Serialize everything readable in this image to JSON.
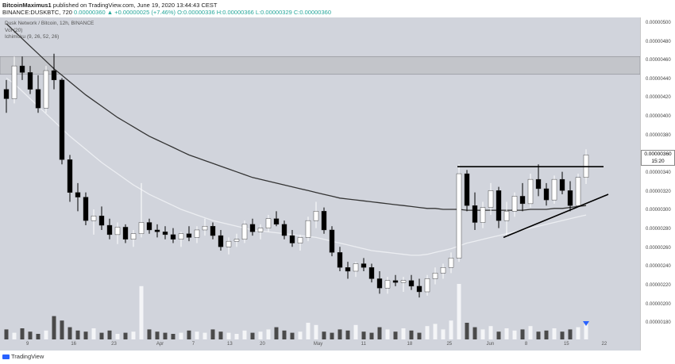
{
  "header": {
    "author": "BitcoinMaximus1",
    "published_text": "published on TradingView.com, June 19, 2020 13:44:43 CEST",
    "symbol": "BINANCE:DUSKBTC, 720",
    "ohlc": "0.00000360 ▲ +0.00000025 (+7.46%) O:0.00000336 H:0.00000366 L:0.00000329 C:0.00000360"
  },
  "legend": {
    "line1": "Dusk Network / Bitcoin, 12h, BINANCE",
    "line2": "Vol (20)",
    "line3": "Ichimoku (9, 26, 52, 26)"
  },
  "price_label": {
    "value": "0.00000360",
    "countdown": "15:20"
  },
  "footer": {
    "brand": "TradingView"
  },
  "colors": {
    "background": "#d1d4dc",
    "up_candle": "#ffffff",
    "down_candle": "#000000",
    "ma_dark": "#333333",
    "ma_light": "#eceef2",
    "resistance_zone": "#c3c5ca",
    "volume_marker": "#2962ff"
  },
  "chart_data": {
    "type": "candlestick",
    "title": "",
    "ylabel": "",
    "xlabel": "",
    "ylim": [
      1.7e-06,
      5.05e-06
    ],
    "y_ticks": [
      "0.00000500",
      "0.00000480",
      "0.00000460",
      "0.00000440",
      "0.00000420",
      "0.00000400",
      "0.00000380",
      "0.00000360",
      "0.00000340",
      "0.00000320",
      "0.00000300",
      "0.00000280",
      "0.00000260",
      "0.00000240",
      "0.00000220",
      "0.00000200",
      "0.00000180"
    ],
    "x_ticks": [
      "9",
      "16",
      "23",
      "Apr",
      "7",
      "13",
      "20",
      "May",
      "11",
      "18",
      "25",
      "Jun",
      "8",
      "15",
      "22"
    ],
    "resistance_zone": [
      4.46e-06,
      4.65e-06
    ],
    "horizontal_resistance": 3.475e-06,
    "ascending_trendline": [
      [
        2.72e-06,
        "Jun 1"
      ],
      [
        3.18e-06,
        "Jun 22"
      ]
    ],
    "candles": [
      {
        "x": 0,
        "o": 430,
        "h": 440,
        "l": 405,
        "c": 420
      },
      {
        "x": 1,
        "o": 420,
        "h": 465,
        "l": 415,
        "c": 455
      },
      {
        "x": 2,
        "o": 455,
        "h": 465,
        "l": 440,
        "c": 448
      },
      {
        "x": 3,
        "o": 448,
        "h": 455,
        "l": 425,
        "c": 430
      },
      {
        "x": 4,
        "o": 430,
        "h": 445,
        "l": 405,
        "c": 410
      },
      {
        "x": 5,
        "o": 410,
        "h": 455,
        "l": 405,
        "c": 450
      },
      {
        "x": 6,
        "o": 450,
        "h": 468,
        "l": 430,
        "c": 440
      },
      {
        "x": 7,
        "o": 440,
        "h": 442,
        "l": 350,
        "c": 355
      },
      {
        "x": 8,
        "o": 355,
        "h": 360,
        "l": 310,
        "c": 320
      },
      {
        "x": 9,
        "o": 320,
        "h": 330,
        "l": 300,
        "c": 315
      },
      {
        "x": 10,
        "o": 315,
        "h": 320,
        "l": 285,
        "c": 290
      },
      {
        "x": 11,
        "o": 290,
        "h": 302,
        "l": 275,
        "c": 295
      },
      {
        "x": 12,
        "o": 295,
        "h": 305,
        "l": 280,
        "c": 285
      },
      {
        "x": 13,
        "o": 285,
        "h": 292,
        "l": 270,
        "c": 275
      },
      {
        "x": 14,
        "o": 275,
        "h": 288,
        "l": 265,
        "c": 283
      },
      {
        "x": 15,
        "o": 283,
        "h": 286,
        "l": 266,
        "c": 270
      },
      {
        "x": 16,
        "o": 270,
        "h": 280,
        "l": 262,
        "c": 276
      },
      {
        "x": 17,
        "o": 276,
        "h": 330,
        "l": 272,
        "c": 288
      },
      {
        "x": 18,
        "o": 288,
        "h": 292,
        "l": 276,
        "c": 280
      },
      {
        "x": 19,
        "o": 280,
        "h": 286,
        "l": 272,
        "c": 278
      },
      {
        "x": 20,
        "o": 278,
        "h": 284,
        "l": 270,
        "c": 275
      },
      {
        "x": 21,
        "o": 275,
        "h": 282,
        "l": 266,
        "c": 270
      },
      {
        "x": 22,
        "o": 270,
        "h": 278,
        "l": 262,
        "c": 276
      },
      {
        "x": 23,
        "o": 276,
        "h": 284,
        "l": 268,
        "c": 272
      },
      {
        "x": 24,
        "o": 272,
        "h": 284,
        "l": 266,
        "c": 280
      },
      {
        "x": 25,
        "o": 280,
        "h": 292,
        "l": 274,
        "c": 284
      },
      {
        "x": 26,
        "o": 284,
        "h": 288,
        "l": 270,
        "c": 274
      },
      {
        "x": 27,
        "o": 274,
        "h": 280,
        "l": 258,
        "c": 262
      },
      {
        "x": 28,
        "o": 262,
        "h": 272,
        "l": 254,
        "c": 268
      },
      {
        "x": 29,
        "o": 268,
        "h": 276,
        "l": 262,
        "c": 270
      },
      {
        "x": 30,
        "o": 270,
        "h": 290,
        "l": 266,
        "c": 286
      },
      {
        "x": 31,
        "o": 286,
        "h": 292,
        "l": 274,
        "c": 278
      },
      {
        "x": 32,
        "o": 278,
        "h": 286,
        "l": 270,
        "c": 282
      },
      {
        "x": 33,
        "o": 282,
        "h": 296,
        "l": 278,
        "c": 292
      },
      {
        "x": 34,
        "o": 292,
        "h": 300,
        "l": 284,
        "c": 286
      },
      {
        "x": 35,
        "o": 286,
        "h": 290,
        "l": 270,
        "c": 274
      },
      {
        "x": 36,
        "o": 274,
        "h": 280,
        "l": 262,
        "c": 266
      },
      {
        "x": 37,
        "o": 266,
        "h": 275,
        "l": 258,
        "c": 272
      },
      {
        "x": 38,
        "o": 272,
        "h": 294,
        "l": 268,
        "c": 290
      },
      {
        "x": 39,
        "o": 290,
        "h": 310,
        "l": 282,
        "c": 300
      },
      {
        "x": 40,
        "o": 300,
        "h": 304,
        "l": 276,
        "c": 280
      },
      {
        "x": 41,
        "o": 280,
        "h": 284,
        "l": 252,
        "c": 256
      },
      {
        "x": 42,
        "o": 256,
        "h": 262,
        "l": 236,
        "c": 240
      },
      {
        "x": 43,
        "o": 240,
        "h": 246,
        "l": 228,
        "c": 236
      },
      {
        "x": 44,
        "o": 236,
        "h": 246,
        "l": 230,
        "c": 244
      },
      {
        "x": 45,
        "o": 244,
        "h": 250,
        "l": 236,
        "c": 240
      },
      {
        "x": 46,
        "o": 240,
        "h": 244,
        "l": 224,
        "c": 228
      },
      {
        "x": 47,
        "o": 228,
        "h": 236,
        "l": 212,
        "c": 218
      },
      {
        "x": 48,
        "o": 218,
        "h": 230,
        "l": 212,
        "c": 226
      },
      {
        "x": 49,
        "o": 226,
        "h": 232,
        "l": 220,
        "c": 224
      },
      {
        "x": 50,
        "o": 224,
        "h": 230,
        "l": 214,
        "c": 226
      },
      {
        "x": 51,
        "o": 226,
        "h": 232,
        "l": 216,
        "c": 220
      },
      {
        "x": 52,
        "o": 220,
        "h": 228,
        "l": 208,
        "c": 214
      },
      {
        "x": 53,
        "o": 214,
        "h": 232,
        "l": 210,
        "c": 228
      },
      {
        "x": 54,
        "o": 228,
        "h": 240,
        "l": 222,
        "c": 234
      },
      {
        "x": 55,
        "o": 234,
        "h": 244,
        "l": 228,
        "c": 240
      },
      {
        "x": 56,
        "o": 240,
        "h": 256,
        "l": 234,
        "c": 250
      },
      {
        "x": 57,
        "o": 250,
        "h": 350,
        "l": 246,
        "c": 340
      },
      {
        "x": 58,
        "o": 340,
        "h": 344,
        "l": 300,
        "c": 306
      },
      {
        "x": 59,
        "o": 306,
        "h": 320,
        "l": 280,
        "c": 288
      },
      {
        "x": 60,
        "o": 288,
        "h": 310,
        "l": 282,
        "c": 304
      },
      {
        "x": 61,
        "o": 304,
        "h": 330,
        "l": 296,
        "c": 322
      },
      {
        "x": 62,
        "o": 322,
        "h": 326,
        "l": 282,
        "c": 290
      },
      {
        "x": 63,
        "o": 290,
        "h": 310,
        "l": 272,
        "c": 300
      },
      {
        "x": 64,
        "o": 300,
        "h": 320,
        "l": 294,
        "c": 316
      },
      {
        "x": 65,
        "o": 316,
        "h": 330,
        "l": 300,
        "c": 308
      },
      {
        "x": 66,
        "o": 308,
        "h": 340,
        "l": 304,
        "c": 334
      },
      {
        "x": 67,
        "o": 334,
        "h": 350,
        "l": 316,
        "c": 324
      },
      {
        "x": 68,
        "o": 324,
        "h": 330,
        "l": 306,
        "c": 312
      },
      {
        "x": 69,
        "o": 312,
        "h": 338,
        "l": 308,
        "c": 334
      },
      {
        "x": 70,
        "o": 334,
        "h": 342,
        "l": 318,
        "c": 322
      },
      {
        "x": 71,
        "o": 322,
        "h": 332,
        "l": 300,
        "c": 306
      },
      {
        "x": 72,
        "o": 306,
        "h": 340,
        "l": 304,
        "c": 336
      },
      {
        "x": 73,
        "o": 336,
        "h": 366,
        "l": 329,
        "c": 360
      }
    ],
    "volume_scale": "relative",
    "volume": [
      18,
      12,
      20,
      14,
      10,
      16,
      42,
      34,
      22,
      16,
      14,
      20,
      12,
      16,
      10,
      12,
      14,
      96,
      18,
      14,
      12,
      10,
      12,
      16,
      14,
      12,
      18,
      14,
      12,
      10,
      16,
      12,
      14,
      18,
      22,
      16,
      12,
      14,
      30,
      26,
      14,
      12,
      18,
      16,
      26,
      14,
      12,
      22,
      18,
      14,
      20,
      16,
      12,
      24,
      28,
      18,
      34,
      100,
      30,
      22,
      18,
      24,
      14,
      20,
      16,
      18,
      24,
      14,
      16,
      20,
      14,
      18,
      22,
      28
    ],
    "ma_200": [
      500,
      492,
      484,
      476,
      468,
      460,
      452,
      445,
      438,
      431,
      424,
      418,
      412,
      406,
      400,
      395,
      390,
      385,
      380,
      376,
      372,
      368,
      364,
      360,
      357,
      354,
      351,
      348,
      345,
      342,
      339,
      336,
      334,
      332,
      330,
      328,
      326,
      324,
      322,
      320,
      318,
      316,
      314,
      313,
      312,
      311,
      310,
      309,
      308,
      307,
      306,
      305,
      304,
      303,
      303,
      302,
      302,
      302,
      301,
      301,
      301,
      301,
      301,
      301,
      301,
      301,
      302,
      302,
      302,
      303,
      303,
      304,
      305,
      306
    ],
    "ma_100": [
      442,
      436,
      428,
      420,
      412,
      404,
      396,
      388,
      380,
      373,
      366,
      359,
      352,
      346,
      340,
      334,
      328,
      323,
      318,
      314,
      310,
      306,
      302,
      299,
      296,
      293,
      290,
      288,
      286,
      284,
      282,
      280,
      279,
      278,
      277,
      276,
      275,
      274,
      273,
      272,
      270,
      268,
      266,
      264,
      262,
      260,
      258,
      257,
      256,
      255,
      254,
      253,
      253,
      254,
      256,
      258,
      260,
      263,
      266,
      268,
      270,
      272,
      274,
      276,
      278,
      280,
      282,
      284,
      286,
      288,
      290,
      292,
      294,
      296
    ]
  }
}
